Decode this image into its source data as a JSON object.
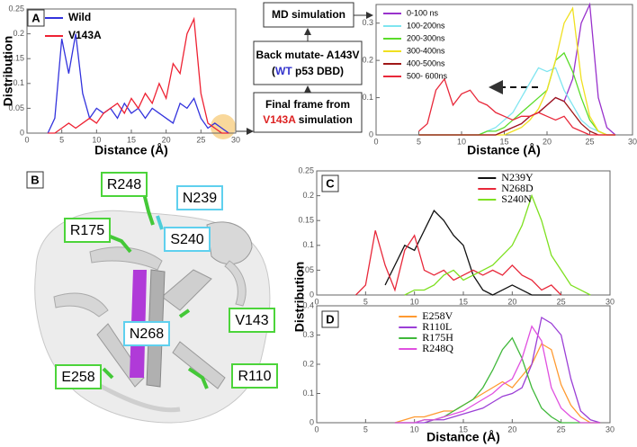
{
  "chart_data": [
    {
      "type": "line",
      "panel": "A",
      "x_label": "Distance (Å)",
      "y_label": "Distribution",
      "x": [
        3,
        4,
        5,
        6,
        7,
        8,
        9,
        10,
        11,
        12,
        13,
        14,
        15,
        16,
        17,
        18,
        19,
        20,
        21,
        22,
        23,
        24,
        25,
        26,
        27,
        28,
        29
      ],
      "series": [
        {
          "name": "Wild",
          "color": "#3333dd",
          "values": [
            0,
            0.03,
            0.19,
            0.12,
            0.2,
            0.08,
            0.03,
            0.05,
            0.04,
            0.05,
            0.03,
            0.06,
            0.04,
            0.05,
            0.03,
            0.05,
            0.04,
            0.03,
            0.02,
            0.06,
            0.05,
            0.07,
            0.03,
            0.01,
            0.02,
            0.01,
            0
          ]
        },
        {
          "name": "V143A",
          "color": "#ee2233",
          "values": [
            0,
            0,
            0.01,
            0.02,
            0.01,
            0.02,
            0.03,
            0.02,
            0.04,
            0.05,
            0.06,
            0.04,
            0.07,
            0.05,
            0.08,
            0.06,
            0.1,
            0.07,
            0.14,
            0.12,
            0.2,
            0.23,
            0.08,
            0.02,
            0.01,
            0,
            0
          ]
        }
      ],
      "xlim": [
        0,
        30
      ],
      "xticks": [
        0,
        5,
        10,
        15,
        20,
        25,
        30
      ],
      "ylim": [
        0,
        0.25
      ],
      "yticks": [
        0,
        0.05,
        0.1,
        0.15,
        0.2,
        0.25
      ],
      "legend": "upper left"
    },
    {
      "type": "line",
      "x_label": "Distance (Å)",
      "x": [
        5,
        6,
        7,
        8,
        9,
        10,
        11,
        12,
        13,
        14,
        15,
        16,
        17,
        18,
        19,
        20,
        21,
        22,
        23,
        24,
        25,
        26,
        27,
        28
      ],
      "series": [
        {
          "name": "0-100 ns",
          "color": "#9932cc",
          "values": [
            0,
            0,
            0,
            0,
            0,
            0,
            0,
            0,
            0,
            0,
            0.01,
            0.02,
            0.03,
            0.05,
            0.06,
            0.08,
            0.1,
            0.09,
            0.15,
            0.3,
            0.35,
            0.1,
            0.02,
            0
          ]
        },
        {
          "name": "100-200ns",
          "color": "#7fe5f0",
          "values": [
            0,
            0,
            0,
            0,
            0,
            0,
            0,
            0,
            0.01,
            0.02,
            0.04,
            0.06,
            0.1,
            0.14,
            0.18,
            0.17,
            0.18,
            0.12,
            0.08,
            0.04,
            0.02,
            0.01,
            0,
            0
          ]
        },
        {
          "name": "200-300ns",
          "color": "#5bdc2a",
          "values": [
            0,
            0,
            0,
            0,
            0,
            0,
            0,
            0,
            0.01,
            0.01,
            0.02,
            0.04,
            0.06,
            0.08,
            0.1,
            0.12,
            0.2,
            0.22,
            0.17,
            0.1,
            0.04,
            0.01,
            0,
            0
          ]
        },
        {
          "name": "300-400ns",
          "color": "#f0e020",
          "values": [
            0,
            0,
            0,
            0,
            0,
            0,
            0,
            0,
            0,
            0,
            0,
            0.01,
            0.02,
            0.04,
            0.07,
            0.12,
            0.2,
            0.3,
            0.34,
            0.15,
            0.05,
            0.01,
            0,
            0
          ]
        },
        {
          "name": "400-500ns",
          "color": "#a01818",
          "values": [
            0,
            0,
            0,
            0,
            0,
            0,
            0,
            0,
            0,
            0,
            0.01,
            0.02,
            0.03,
            0.05,
            0.06,
            0.08,
            0.1,
            0.09,
            0.06,
            0.03,
            0.01,
            0,
            0,
            0
          ]
        },
        {
          "name": "500- 600ns",
          "color": "#e8283a",
          "values": [
            0.01,
            0.03,
            0.12,
            0.15,
            0.08,
            0.11,
            0.12,
            0.09,
            0.08,
            0.06,
            0.05,
            0.04,
            0.05,
            0.05,
            0.06,
            0.05,
            0.04,
            0.05,
            0.02,
            0.01,
            0,
            0,
            0,
            0
          ]
        }
      ],
      "xlim": [
        0,
        30
      ],
      "xticks": [
        0,
        5,
        10,
        15,
        20,
        25,
        30
      ],
      "ylim": [
        0,
        0.35
      ],
      "yticks": [
        0,
        0.1,
        0.2,
        0.3
      ],
      "legend": "upper left"
    },
    {
      "type": "line",
      "panel": "C",
      "y_label": "Distribution",
      "x": [
        4,
        5,
        6,
        7,
        8,
        9,
        10,
        11,
        12,
        13,
        14,
        15,
        16,
        17,
        18,
        19,
        20,
        21,
        22,
        23,
        24,
        25,
        26,
        27,
        28
      ],
      "series": [
        {
          "name": "N239Y",
          "color": "#111111",
          "values": [
            null,
            null,
            null,
            0.02,
            0.06,
            0.1,
            0.09,
            0.13,
            0.17,
            0.15,
            0.12,
            0.1,
            0.04,
            0.01,
            0,
            0.01,
            0.02,
            0.01,
            0,
            0,
            0,
            null,
            null,
            null,
            null
          ]
        },
        {
          "name": "N268D",
          "color": "#e8283a",
          "values": [
            0,
            0.02,
            0.13,
            0.06,
            0.01,
            0.09,
            0.12,
            0.05,
            0.04,
            0.05,
            0.03,
            0.04,
            0.05,
            0.04,
            0.05,
            0.04,
            0.06,
            0.04,
            0.03,
            0.01,
            0.02,
            0,
            null,
            null,
            null
          ]
        },
        {
          "name": "S240N",
          "color": "#7ee020",
          "values": [
            null,
            null,
            null,
            null,
            null,
            0,
            0.01,
            0.01,
            0.02,
            0.04,
            0.05,
            0.03,
            0.04,
            0.05,
            0.06,
            0.08,
            0.1,
            0.14,
            0.2,
            0.15,
            0.08,
            0.05,
            0.02,
            0.01,
            0
          ]
        }
      ],
      "xlim": [
        0,
        30
      ],
      "xticks": [
        0,
        5,
        10,
        15,
        20,
        25,
        30
      ],
      "ylim": [
        0,
        0.25
      ],
      "yticks": [
        0,
        0.05,
        0.1,
        0.15,
        0.2,
        0.25
      ],
      "legend": "upper right"
    },
    {
      "type": "line",
      "panel": "D",
      "x_label": "Distance (Å)",
      "x": [
        8,
        9,
        10,
        11,
        12,
        13,
        14,
        15,
        16,
        17,
        18,
        19,
        20,
        21,
        22,
        23,
        24,
        25,
        26,
        27,
        28,
        29
      ],
      "series": [
        {
          "name": "E258V",
          "color": "#ff9a30",
          "values": [
            0,
            0.01,
            0.02,
            0.02,
            0.03,
            0.04,
            0.04,
            0.06,
            0.08,
            0.1,
            0.12,
            0.14,
            0.12,
            0.16,
            0.2,
            0.27,
            0.25,
            0.13,
            0.06,
            0.02,
            0,
            0
          ]
        },
        {
          "name": "R110L",
          "color": "#9b3fd6",
          "values": [
            0,
            0,
            0,
            0,
            0.01,
            0.01,
            0.02,
            0.03,
            0.04,
            0.05,
            0.07,
            0.09,
            0.1,
            0.12,
            0.2,
            0.36,
            0.34,
            0.3,
            0.15,
            0.04,
            0.01,
            0
          ]
        },
        {
          "name": "R175H",
          "color": "#3fb83a",
          "values": [
            0,
            0,
            0,
            0.01,
            0.01,
            0.02,
            0.04,
            0.06,
            0.08,
            0.12,
            0.18,
            0.25,
            0.29,
            0.22,
            0.12,
            0.05,
            0.02,
            0,
            0,
            0,
            0,
            0
          ]
        },
        {
          "name": "R248Q",
          "color": "#e050e0",
          "values": [
            0,
            0,
            0,
            0.01,
            0.01,
            0.02,
            0.03,
            0.04,
            0.06,
            0.08,
            0.1,
            0.13,
            0.15,
            0.22,
            0.33,
            0.28,
            0.12,
            0.05,
            0.02,
            0,
            0,
            0
          ]
        }
      ],
      "xlim": [
        0,
        30
      ],
      "xticks": [
        0,
        5,
        10,
        15,
        20,
        25,
        30
      ],
      "ylim": [
        0,
        0.4
      ],
      "yticks": [
        0,
        0.1,
        0.2,
        0.3,
        0.4
      ],
      "legend": "upper center"
    }
  ],
  "diagram": {
    "md": "MD simulation",
    "back_mutate": [
      "Back mutate- A143V",
      "(",
      "WT",
      " p53 DBD)"
    ],
    "final_frame": [
      "Final frame from",
      "V143A",
      " simulation"
    ]
  },
  "structure": {
    "panel": "B",
    "labels": [
      {
        "text": "R248",
        "border": "#4cd43a"
      },
      {
        "text": "N239",
        "border": "#5fd0ee"
      },
      {
        "text": "R175",
        "border": "#4cd43a"
      },
      {
        "text": "S240",
        "border": "#5fd0ee"
      },
      {
        "text": "V143",
        "border": "#4cd43a"
      },
      {
        "text": "N268",
        "border": "#5fd0ee"
      },
      {
        "text": "E258",
        "border": "#4cd43a"
      },
      {
        "text": "R110",
        "border": "#4cd43a"
      }
    ]
  }
}
